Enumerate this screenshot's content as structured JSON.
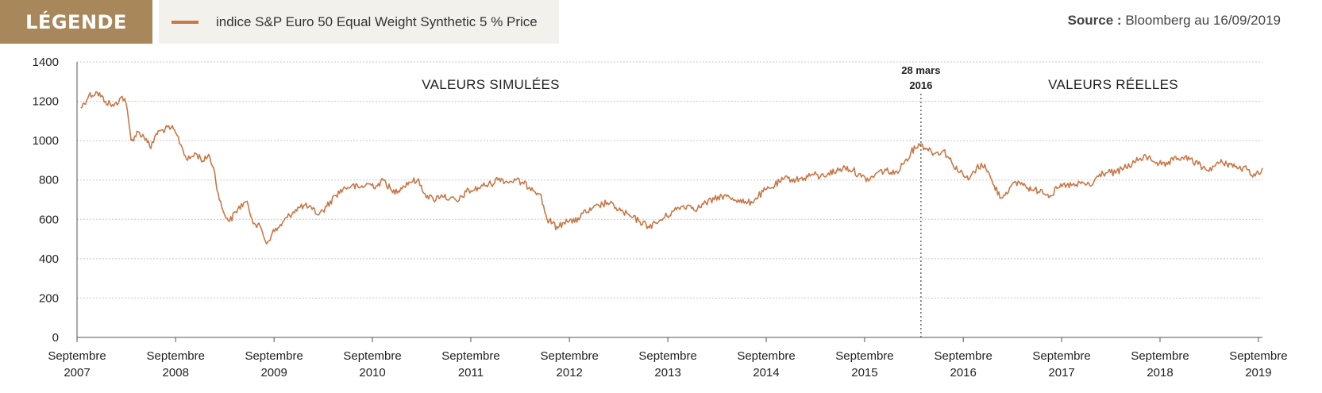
{
  "header": {
    "legend_title": "LÉGENDE",
    "source_prefix": "Source :",
    "source_text": "Bloomberg au 16/09/2019"
  },
  "colors": {
    "series": "#c87848",
    "legend_bg": "#a8875a",
    "legend_box_bg": "#f3f1ec",
    "grid": "#c8c8c8"
  },
  "chart_data": {
    "type": "line",
    "title": "",
    "xlabel": "",
    "ylabel": "",
    "ylim": [
      0,
      1400
    ],
    "yticks": [
      0,
      200,
      400,
      600,
      800,
      1000,
      1200,
      1400
    ],
    "grid": true,
    "legend_position": "top-left",
    "xticks": [
      {
        "label": [
          "Septembre",
          "2007"
        ],
        "date": "2007-09"
      },
      {
        "label": [
          "Septembre",
          "2008"
        ],
        "date": "2008-09"
      },
      {
        "label": [
          "Septembre",
          "2009"
        ],
        "date": "2009-09"
      },
      {
        "label": [
          "Septembre",
          "2010"
        ],
        "date": "2010-09"
      },
      {
        "label": [
          "Septembre",
          "2011"
        ],
        "date": "2011-09"
      },
      {
        "label": [
          "Septembre",
          "2012"
        ],
        "date": "2012-09"
      },
      {
        "label": [
          "Septembre",
          "2013"
        ],
        "date": "2013-09"
      },
      {
        "label": [
          "Septembre",
          "2014"
        ],
        "date": "2014-09"
      },
      {
        "label": [
          "Septembre",
          "2015"
        ],
        "date": "2015-09"
      },
      {
        "label": [
          "Septembre",
          "2016"
        ],
        "date": "2016-09"
      },
      {
        "label": [
          "Septembre",
          "2017"
        ],
        "date": "2017-09"
      },
      {
        "label": [
          "Septembre",
          "2018"
        ],
        "date": "2018-09"
      },
      {
        "label": [
          "Septembre",
          "2019"
        ],
        "date": "2019-09"
      }
    ],
    "annotations": {
      "simulated": "VALEURS SIMULÉES",
      "real": "VALEURS RÉELLES",
      "marker_line1": "28 mars",
      "marker_line2": "2016",
      "marker_date": "2016-03-28"
    },
    "series": [
      {
        "name": "indice S&P Euro 50 Equal Weight Synthetic 5 % Price",
        "points": [
          [
            "2007-09-15",
            1165
          ],
          [
            "2007-10-15",
            1230
          ],
          [
            "2007-11-15",
            1245
          ],
          [
            "2007-12-15",
            1200
          ],
          [
            "2008-01-15",
            1175
          ],
          [
            "2008-02-15",
            1225
          ],
          [
            "2008-03-01",
            1190
          ],
          [
            "2008-03-20",
            1000
          ],
          [
            "2008-04-15",
            1045
          ],
          [
            "2008-05-15",
            1010
          ],
          [
            "2008-06-01",
            960
          ],
          [
            "2008-06-20",
            1035
          ],
          [
            "2008-07-15",
            1055
          ],
          [
            "2008-08-15",
            1065
          ],
          [
            "2008-09-01",
            1040
          ],
          [
            "2008-09-20",
            980
          ],
          [
            "2008-10-15",
            900
          ],
          [
            "2008-11-15",
            935
          ],
          [
            "2008-12-15",
            895
          ],
          [
            "2009-01-01",
            930
          ],
          [
            "2009-01-20",
            860
          ],
          [
            "2009-02-10",
            700
          ],
          [
            "2009-02-25",
            640
          ],
          [
            "2009-03-20",
            590
          ],
          [
            "2009-04-20",
            655
          ],
          [
            "2009-05-20",
            690
          ],
          [
            "2009-06-20",
            580
          ],
          [
            "2009-07-15",
            555
          ],
          [
            "2009-08-05",
            475
          ],
          [
            "2009-08-25",
            530
          ],
          [
            "2009-09-20",
            560
          ],
          [
            "2009-10-20",
            610
          ],
          [
            "2009-11-20",
            650
          ],
          [
            "2009-12-20",
            670
          ],
          [
            "2010-01-20",
            650
          ],
          [
            "2010-02-15",
            625
          ],
          [
            "2010-03-15",
            665
          ],
          [
            "2010-04-15",
            720
          ],
          [
            "2010-05-15",
            755
          ],
          [
            "2010-06-15",
            770
          ],
          [
            "2010-07-15",
            760
          ],
          [
            "2010-08-15",
            780
          ],
          [
            "2010-09-15",
            770
          ],
          [
            "2010-10-15",
            800
          ],
          [
            "2010-11-15",
            735
          ],
          [
            "2010-12-15",
            760
          ],
          [
            "2011-01-15",
            790
          ],
          [
            "2011-02-15",
            800
          ],
          [
            "2011-03-15",
            730
          ],
          [
            "2011-04-15",
            700
          ],
          [
            "2011-05-15",
            725
          ],
          [
            "2011-06-15",
            705
          ],
          [
            "2011-07-15",
            690
          ],
          [
            "2011-08-15",
            740
          ],
          [
            "2011-09-15",
            750
          ],
          [
            "2011-10-15",
            770
          ],
          [
            "2011-11-15",
            780
          ],
          [
            "2011-12-15",
            810
          ],
          [
            "2012-01-15",
            790
          ],
          [
            "2012-02-15",
            800
          ],
          [
            "2012-03-15",
            780
          ],
          [
            "2012-04-15",
            760
          ],
          [
            "2012-05-15",
            730
          ],
          [
            "2012-06-10",
            600
          ],
          [
            "2012-06-30",
            580
          ],
          [
            "2012-07-20",
            555
          ],
          [
            "2012-08-20",
            600
          ],
          [
            "2012-09-20",
            585
          ],
          [
            "2012-10-20",
            630
          ],
          [
            "2012-11-20",
            645
          ],
          [
            "2012-12-20",
            670
          ],
          [
            "2013-01-20",
            685
          ],
          [
            "2013-02-20",
            660
          ],
          [
            "2013-03-20",
            635
          ],
          [
            "2013-04-20",
            610
          ],
          [
            "2013-05-20",
            590
          ],
          [
            "2013-06-20",
            565
          ],
          [
            "2013-07-20",
            580
          ],
          [
            "2013-08-20",
            610
          ],
          [
            "2013-09-20",
            640
          ],
          [
            "2013-10-20",
            665
          ],
          [
            "2013-11-20",
            670
          ],
          [
            "2013-12-20",
            655
          ],
          [
            "2014-01-20",
            685
          ],
          [
            "2014-02-20",
            700
          ],
          [
            "2014-03-20",
            720
          ],
          [
            "2014-04-20",
            710
          ],
          [
            "2014-05-20",
            700
          ],
          [
            "2014-06-20",
            680
          ],
          [
            "2014-07-20",
            700
          ],
          [
            "2014-08-20",
            740
          ],
          [
            "2014-09-20",
            760
          ],
          [
            "2014-10-20",
            790
          ],
          [
            "2014-11-20",
            810
          ],
          [
            "2014-12-20",
            800
          ],
          [
            "2015-01-20",
            810
          ],
          [
            "2015-02-20",
            830
          ],
          [
            "2015-03-20",
            815
          ],
          [
            "2015-04-20",
            835
          ],
          [
            "2015-05-20",
            845
          ],
          [
            "2015-06-20",
            865
          ],
          [
            "2015-07-20",
            850
          ],
          [
            "2015-08-20",
            815
          ],
          [
            "2015-09-20",
            800
          ],
          [
            "2015-10-20",
            840
          ],
          [
            "2015-11-20",
            850
          ],
          [
            "2015-12-20",
            830
          ],
          [
            "2016-01-20",
            880
          ],
          [
            "2016-02-20",
            940
          ],
          [
            "2016-03-20",
            985
          ],
          [
            "2016-04-20",
            960
          ],
          [
            "2016-05-20",
            935
          ],
          [
            "2016-06-20",
            950
          ],
          [
            "2016-07-20",
            890
          ],
          [
            "2016-08-20",
            840
          ],
          [
            "2016-09-20",
            800
          ],
          [
            "2016-10-20",
            860
          ],
          [
            "2016-11-20",
            880
          ],
          [
            "2016-12-20",
            780
          ],
          [
            "2017-01-20",
            710
          ],
          [
            "2017-02-20",
            760
          ],
          [
            "2017-03-28",
            790
          ],
          [
            "2017-04-20",
            770
          ],
          [
            "2017-05-20",
            745
          ],
          [
            "2017-06-20",
            750
          ],
          [
            "2017-07-20",
            720
          ],
          [
            "2017-08-20",
            760
          ],
          [
            "2017-09-20",
            775
          ],
          [
            "2017-10-20",
            770
          ],
          [
            "2017-11-20",
            785
          ],
          [
            "2017-12-20",
            770
          ],
          [
            "2018-01-20",
            830
          ],
          [
            "2018-02-20",
            840
          ],
          [
            "2018-03-20",
            835
          ],
          [
            "2018-04-20",
            860
          ],
          [
            "2018-05-20",
            880
          ],
          [
            "2018-06-20",
            910
          ],
          [
            "2018-07-20",
            915
          ],
          [
            "2018-08-20",
            890
          ],
          [
            "2018-09-20",
            870
          ],
          [
            "2018-10-20",
            900
          ],
          [
            "2018-11-20",
            915
          ],
          [
            "2018-12-20",
            905
          ],
          [
            "2019-01-20",
            880
          ],
          [
            "2019-02-20",
            850
          ],
          [
            "2019-03-20",
            870
          ],
          [
            "2019-04-20",
            890
          ],
          [
            "2019-05-20",
            880
          ],
          [
            "2019-06-20",
            860
          ],
          [
            "2019-07-20",
            855
          ],
          [
            "2019-08-20",
            820
          ],
          [
            "2019-09-16",
            860
          ]
        ]
      }
    ]
  }
}
